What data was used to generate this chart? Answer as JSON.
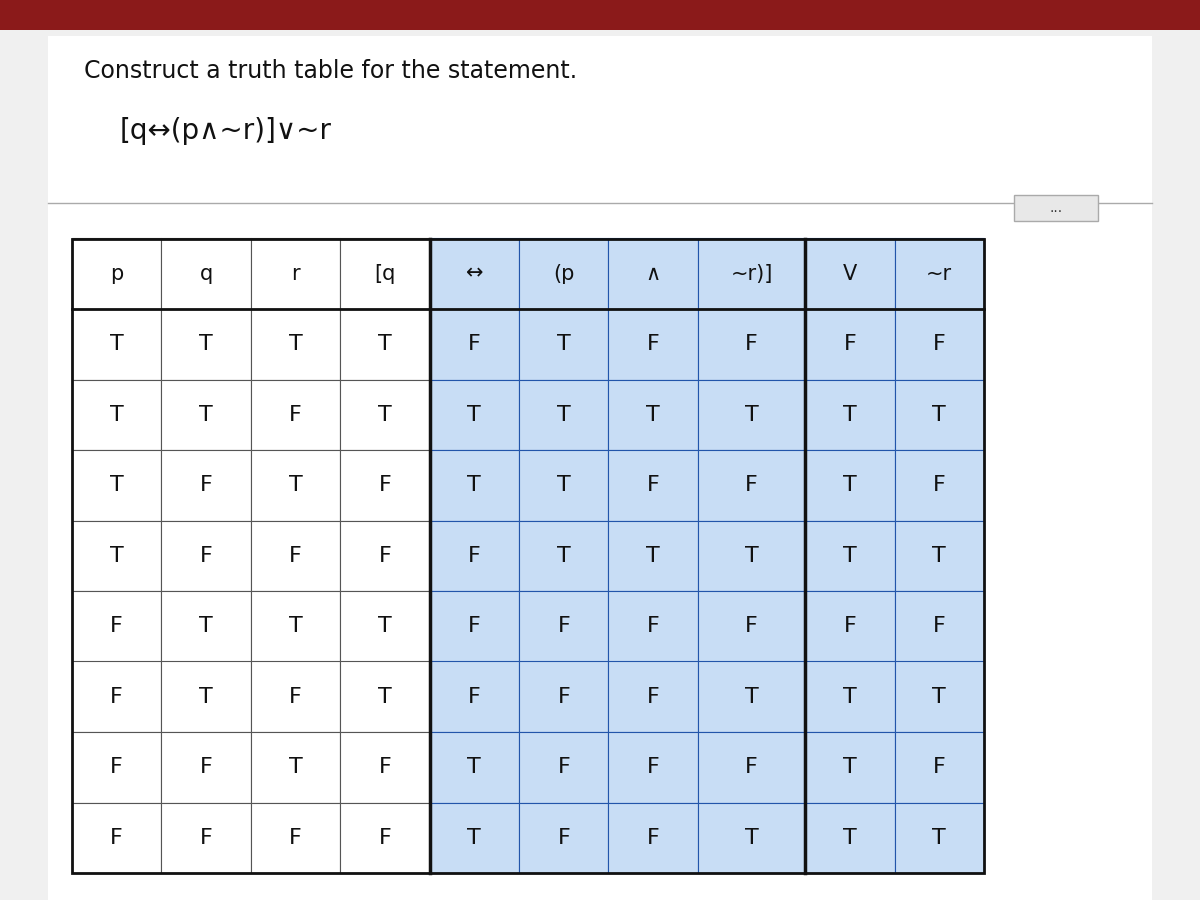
{
  "title": "Construct a truth table for the statement.",
  "formula": "[q↔(p∧~r)]∨~r",
  "headers": [
    "p",
    "q",
    "r",
    "[q",
    "↔",
    "(p",
    "∧",
    "~r)]",
    "V",
    "~r"
  ],
  "rows": [
    [
      "T",
      "T",
      "T",
      "T",
      "F",
      "T",
      "F",
      "F",
      "F",
      "F"
    ],
    [
      "T",
      "T",
      "F",
      "T",
      "T",
      "T",
      "T",
      "T",
      "T",
      "T"
    ],
    [
      "T",
      "F",
      "T",
      "F",
      "T",
      "T",
      "F",
      "F",
      "T",
      "F"
    ],
    [
      "T",
      "F",
      "F",
      "F",
      "F",
      "T",
      "T",
      "T",
      "T",
      "T"
    ],
    [
      "F",
      "T",
      "T",
      "T",
      "F",
      "F",
      "F",
      "F",
      "F",
      "F"
    ],
    [
      "F",
      "T",
      "F",
      "T",
      "F",
      "F",
      "F",
      "T",
      "T",
      "T"
    ],
    [
      "F",
      "F",
      "T",
      "F",
      "T",
      "F",
      "F",
      "F",
      "T",
      "F"
    ],
    [
      "F",
      "F",
      "F",
      "F",
      "T",
      "F",
      "F",
      "T",
      "T",
      "T"
    ]
  ],
  "bg_color": "#d8d8d8",
  "page_bg": "#f0f0f0",
  "white_panel": "#f5f5f5",
  "cell_bg_plain": "#ffffff",
  "cell_bg_blue": "#c8ddf5",
  "border_color_plain": "#555555",
  "border_color_blue": "#2255aa",
  "text_color": "#111111",
  "top_bar_color": "#8b1a1a",
  "top_bar_height": 0.033,
  "font_size_title": 17,
  "font_size_formula": 20,
  "font_size_cell": 16,
  "font_size_header": 15,
  "dots_button_color": "#dddddd",
  "plain_cols": [
    0,
    1,
    2,
    3
  ],
  "blue_cols": [
    4,
    5,
    6,
    7,
    8,
    9
  ],
  "thick_sep_after": [
    3,
    7
  ],
  "col_widths_rel": [
    1.0,
    1.0,
    1.0,
    1.0,
    1.0,
    1.0,
    1.0,
    1.2,
    1.0,
    1.0
  ]
}
